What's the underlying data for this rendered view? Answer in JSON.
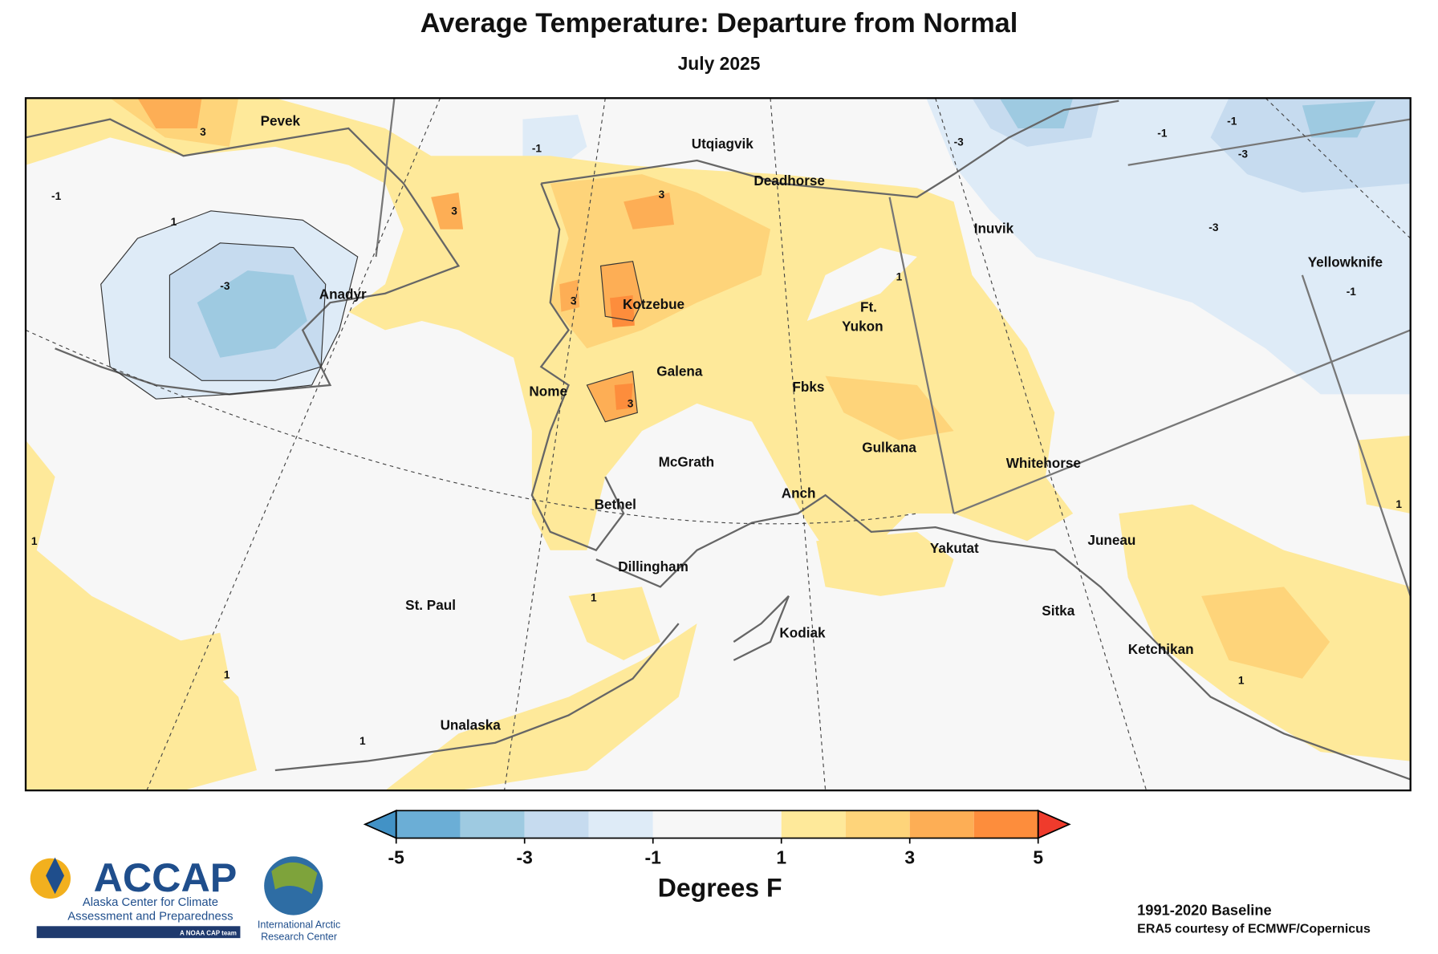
{
  "title": "Average Temperature: Departure from Normal",
  "subtitle": "July 2025",
  "cities": [
    "Pevek",
    "Utqiagvik",
    "Deadhorse",
    "Inuvik",
    "Yellowknife",
    "Anadyr",
    "Kotzebue",
    "Ft.",
    "Yukon",
    "Galena",
    "Nome",
    "Fbks",
    "Gulkana",
    "Whitehorse",
    "McGrath",
    "Bethel",
    "Anch",
    "Yakutat",
    "Juneau",
    "Dillingham",
    "St. Paul",
    "Kodiak",
    "Sitka",
    "Ketchikan",
    "Unalaska"
  ],
  "contour_labels": [
    "3",
    "-1",
    "-1",
    "-3",
    "-1",
    "-3",
    "-3",
    "1",
    "-3",
    "3",
    "3",
    "3",
    "3",
    "1",
    "-1",
    "1",
    "-1",
    "1",
    "1",
    "1",
    "1",
    "1"
  ],
  "colorbar": {
    "label": "Degrees F",
    "lim": [
      -5,
      5
    ],
    "ticks": [
      -5,
      -3,
      -1,
      1,
      3,
      5
    ],
    "bounds": [
      -5,
      -4,
      -3,
      -2,
      -1,
      1,
      2,
      3,
      4,
      5
    ],
    "colors": [
      "#6baed6",
      "#9ecae1",
      "#c6dbef",
      "#deebf7",
      "#f7f7f7",
      "#fee99a",
      "#fed47a",
      "#fdae55",
      "#fd8d3c"
    ],
    "under_color": "#4292c6",
    "over_color": "#ef3b2c"
  },
  "footer": {
    "baseline": "1991-2020 Baseline",
    "source": "ERA5 courtesy of ECMWF/Copernicus",
    "accap": "ACCAP",
    "accap_line1": "Alaska Center for Climate",
    "accap_line2": "Assessment and Preparedness",
    "accap_tag": "A NOAA CAP team",
    "iarc_line1": "International Arctic",
    "iarc_line2": "Research Center"
  }
}
